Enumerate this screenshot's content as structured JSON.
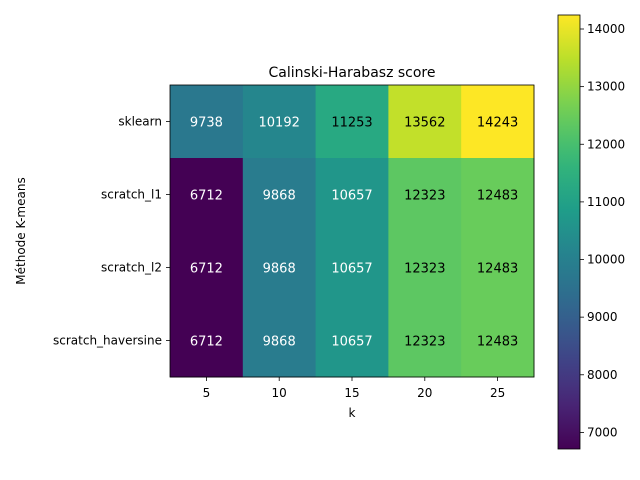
{
  "chart_data": {
    "type": "heatmap",
    "title": "Calinski-Harabasz score",
    "xlabel": "k",
    "ylabel": "Méthode K-means",
    "x": [
      "5",
      "10",
      "15",
      "20",
      "25"
    ],
    "y": [
      "sklearn",
      "scratch_l1",
      "scratch_l2",
      "scratch_haversine"
    ],
    "values": [
      [
        9738,
        10192,
        11253,
        13562,
        14243
      ],
      [
        6712,
        9868,
        10657,
        12323,
        12483
      ],
      [
        6712,
        9868,
        10657,
        12323,
        12483
      ],
      [
        6712,
        9868,
        10657,
        12323,
        12483
      ]
    ],
    "colormap": "viridis",
    "colorbar": {
      "range": [
        6712,
        14243
      ],
      "ticks": [
        "7000",
        "8000",
        "9000",
        "10000",
        "11000",
        "12000",
        "13000",
        "14000"
      ]
    },
    "grid": false,
    "legend": "colorbar-right"
  }
}
